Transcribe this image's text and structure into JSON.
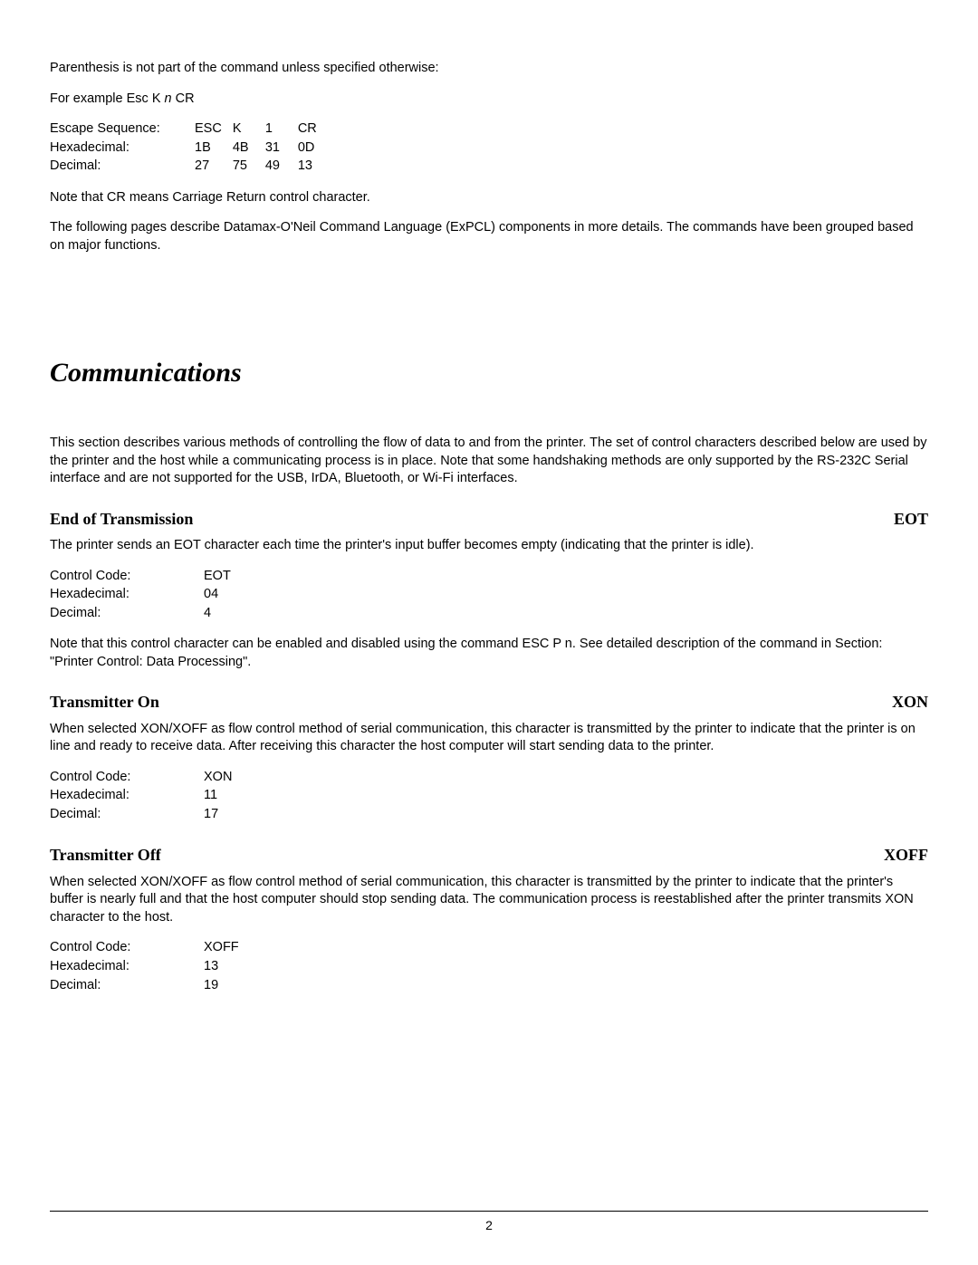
{
  "intro": {
    "p1": "Parenthesis is not part of the command unless specified otherwise:",
    "p2_prefix": "For example Esc K ",
    "p2_var": "n",
    "p2_suffix": "  CR"
  },
  "esc_table": {
    "rows": [
      {
        "label": "Escape Sequence:",
        "c1": "ESC",
        "c2": "K",
        "c3": "1",
        "c4": "CR"
      },
      {
        "label": "Hexadecimal:",
        "c1": "1B",
        "c2": "4B",
        "c3": "31",
        "c4": "0D"
      },
      {
        "label": "Decimal:",
        "c1": "27",
        "c2": "75",
        "c3": "49",
        "c4": "13"
      }
    ]
  },
  "intro2": {
    "note": "Note that CR means Carriage Return control character.",
    "following": "The following pages describe Datamax-O'Neil Command Language (ExPCL) components in more details. The commands have been grouped based on major functions."
  },
  "main_heading": "Communications",
  "comm_intro": "This section describes various methods of controlling the flow of data to and from the printer. The set of control characters described below are used by the printer and the host while a communicating process is in place. Note that some handshaking methods are only supported by the RS-232C Serial interface and are not supported for the USB, IrDA, Bluetooth, or Wi-Fi interfaces.",
  "sections": {
    "eot": {
      "title": "End of Transmission",
      "code": "EOT",
      "desc": "The printer sends an EOT character each time the printer's input buffer becomes empty (indicating that the printer is idle).",
      "rows": [
        {
          "label": "Control Code:",
          "val": "EOT"
        },
        {
          "label": "Hexadecimal:",
          "val": "04"
        },
        {
          "label": "Decimal:",
          "val": "4"
        }
      ],
      "note": "Note that this control character can be enabled and disabled using the command ESC P n.  See detailed description of the command in Section: \"Printer Control: Data Processing\"."
    },
    "xon": {
      "title": "Transmitter On",
      "code": "XON",
      "desc": "When selected XON/XOFF as flow control method of serial communication, this character is transmitted by the printer to indicate that the printer is on line and ready to receive data. After receiving this character the host computer will start sending data to the printer.",
      "rows": [
        {
          "label": "Control Code:",
          "val": "XON"
        },
        {
          "label": "Hexadecimal:",
          "val": "11"
        },
        {
          "label": "Decimal:",
          "val": "17"
        }
      ]
    },
    "xoff": {
      "title": "Transmitter Off",
      "code": "XOFF",
      "desc": "When selected XON/XOFF as flow control method of serial communication, this character is transmitted by the printer to indicate that the printer's buffer is nearly full and that the host computer should stop sending data.  The communication process is reestablished after the printer transmits XON character to the host.",
      "rows": [
        {
          "label": "Control Code:",
          "val": "XOFF"
        },
        {
          "label": "Hexadecimal:",
          "val": "13"
        },
        {
          "label": "Decimal:",
          "val": "19"
        }
      ]
    }
  },
  "page_number": "2"
}
